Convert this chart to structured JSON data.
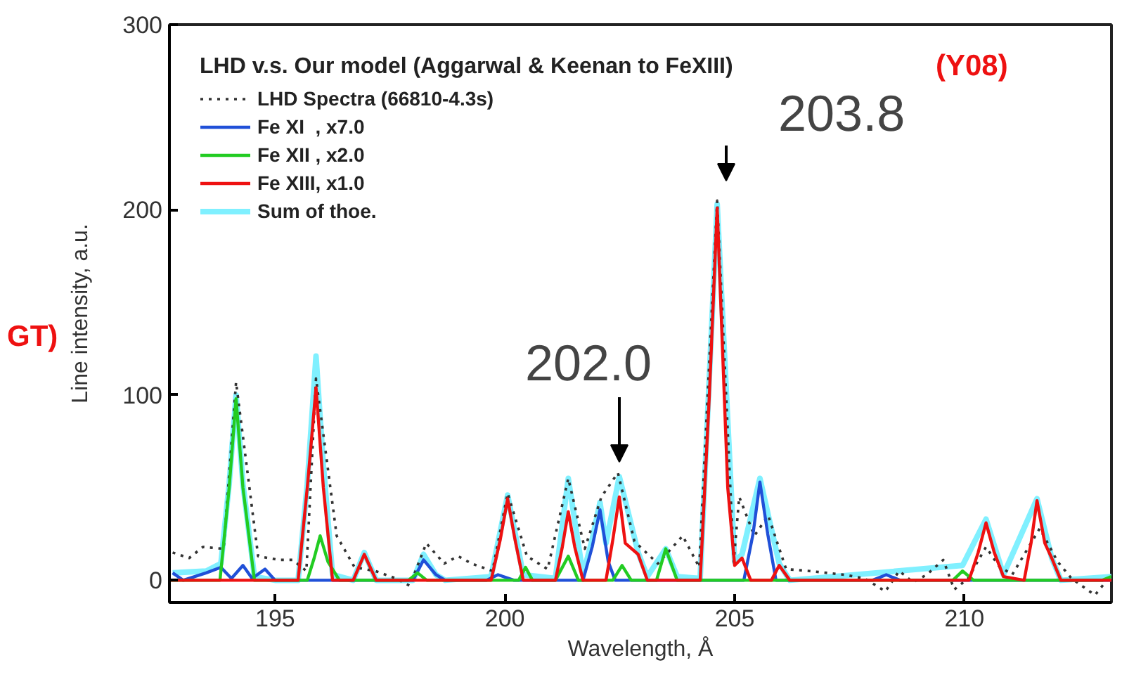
{
  "chart_data": {
    "type": "line",
    "legend_title": "LHD v.s. Our model (Aggarwal & Keenan to FeXIII)",
    "xlabel": "Wavelength, Å",
    "ylabel": "Line intensity, a.u.",
    "xlim": [
      192.7,
      213.2
    ],
    "ylim": [
      -12,
      300
    ],
    "xticks": [
      195,
      200,
      205,
      210
    ],
    "yticks": [
      0,
      100,
      200,
      300
    ],
    "grid": false,
    "legend": "top left",
    "marker": "none",
    "series": [
      {
        "name": "LHD Spectra (66810-4.3s)",
        "color": "#333333",
        "line_style": "dotted",
        "x": [
          192.77,
          193.13,
          193.43,
          193.88,
          194.15,
          194.63,
          195.08,
          195.38,
          195.68,
          195.89,
          196.34,
          196.73,
          197.18,
          197.63,
          197.93,
          198.29,
          198.68,
          198.98,
          199.28,
          199.73,
          200.06,
          200.48,
          200.93,
          201.38,
          201.74,
          202.1,
          202.46,
          202.82,
          203.33,
          203.87,
          204.23,
          204.62,
          204.98,
          205.1,
          205.43,
          205.73,
          206.12,
          206.63,
          207.38,
          207.83,
          208.28,
          208.58,
          208.88,
          209.18,
          209.54,
          209.78,
          210.08,
          210.47,
          210.74,
          211.04,
          211.64,
          212.03,
          212.33,
          212.84,
          213.2
        ],
        "values": [
          15,
          12,
          18,
          17,
          107,
          13,
          11,
          11,
          5,
          109,
          24,
          7,
          5,
          1,
          -3,
          20,
          9,
          13,
          9,
          5,
          47,
          13,
          6,
          55,
          17,
          45,
          58,
          21,
          9,
          24,
          7,
          205,
          10,
          45,
          24,
          35,
          6,
          5,
          3,
          1,
          -6,
          5,
          -1,
          3,
          11,
          -5,
          1,
          18,
          8,
          3,
          28,
          10,
          1,
          -8,
          3
        ]
      },
      {
        "name": "Fe XI  , x7.0",
        "color": "#2050d8",
        "line_style": "solid",
        "x": [
          192.77,
          193.0,
          193.5,
          193.82,
          194.05,
          194.3,
          194.5,
          194.78,
          195.0,
          198.0,
          198.23,
          198.5,
          198.7,
          199.6,
          199.85,
          200.2,
          201.7,
          201.9,
          202.07,
          202.25,
          202.4,
          205.2,
          205.4,
          205.55,
          205.72,
          205.9,
          208.0,
          208.3,
          208.6,
          213.2
        ],
        "values": [
          4,
          0,
          4,
          7,
          1,
          8,
          1,
          6,
          0,
          0,
          11,
          3,
          0,
          0,
          3,
          0,
          0,
          18,
          38,
          10,
          0,
          0,
          25,
          53,
          25,
          0,
          0,
          3,
          0,
          0
        ]
      },
      {
        "name": "Fe XII , x2.0",
        "color": "#22cc22",
        "line_style": "solid",
        "x": [
          192.7,
          193.8,
          194.0,
          194.15,
          194.3,
          194.55,
          195.7,
          195.85,
          195.98,
          196.15,
          196.4,
          197.9,
          198.1,
          198.3,
          200.3,
          200.45,
          200.6,
          201.1,
          201.38,
          201.6,
          202.35,
          202.55,
          202.75,
          203.3,
          203.5,
          203.75,
          209.75,
          209.96,
          210.2,
          213.0,
          213.2
        ],
        "values": [
          0,
          0,
          50,
          98,
          50,
          0,
          0,
          12,
          24,
          10,
          0,
          0,
          4,
          0,
          0,
          7,
          0,
          0,
          13,
          0,
          0,
          8,
          0,
          0,
          17,
          0,
          0,
          5,
          0,
          0,
          2
        ]
      },
      {
        "name": "Fe XIII, x1.0",
        "color": "#ee1111",
        "line_style": "solid",
        "x": [
          192.7,
          195.5,
          195.7,
          195.89,
          196.05,
          196.25,
          196.7,
          196.94,
          197.2,
          199.7,
          199.9,
          200.06,
          200.22,
          200.4,
          201.1,
          201.25,
          201.38,
          201.52,
          201.7,
          202.2,
          202.35,
          202.49,
          202.62,
          202.9,
          203.1,
          204.25,
          204.45,
          204.62,
          204.85,
          205.0,
          205.16,
          205.35,
          205.8,
          205.97,
          206.2,
          210.1,
          210.3,
          210.47,
          210.65,
          210.85,
          211.3,
          211.45,
          211.58,
          211.75,
          211.9,
          212.1,
          213.2
        ],
        "values": [
          0,
          0,
          50,
          104,
          50,
          0,
          0,
          14,
          0,
          0,
          22,
          44,
          22,
          0,
          0,
          18,
          37,
          18,
          0,
          0,
          22,
          45,
          20,
          14,
          0,
          0,
          100,
          201,
          50,
          8,
          12,
          0,
          0,
          8,
          0,
          0,
          15,
          31,
          15,
          2,
          0,
          20,
          43,
          20,
          12,
          0,
          0
        ]
      },
      {
        "name": "Sum of thoe.",
        "color": "#80f0ff",
        "line_style": "solid",
        "x": [
          192.77,
          193.5,
          193.82,
          194.0,
          194.15,
          194.3,
          194.55,
          195.0,
          195.5,
          195.7,
          195.89,
          196.05,
          196.25,
          196.7,
          196.94,
          197.2,
          198.0,
          198.23,
          198.5,
          198.7,
          199.7,
          200.06,
          200.4,
          201.1,
          201.38,
          201.7,
          201.9,
          202.07,
          202.2,
          202.49,
          202.9,
          203.1,
          203.5,
          203.75,
          204.25,
          204.62,
          205.0,
          205.16,
          205.55,
          205.97,
          206.2,
          209.96,
          210.47,
          210.85,
          211.58,
          211.9,
          212.1,
          213.2
        ],
        "values": [
          4,
          5,
          9,
          52,
          100,
          52,
          2,
          0,
          0,
          52,
          121,
          62,
          3,
          0,
          15,
          0,
          0,
          14,
          3,
          0,
          2,
          46,
          3,
          1,
          55,
          3,
          22,
          42,
          20,
          56,
          15,
          2,
          17,
          2,
          1,
          203,
          10,
          14,
          55,
          9,
          0,
          8,
          33,
          3,
          44,
          12,
          0,
          2
        ]
      }
    ],
    "annotations": [
      "203.8",
      "202.0",
      "(Y08)",
      "GT)"
    ]
  }
}
